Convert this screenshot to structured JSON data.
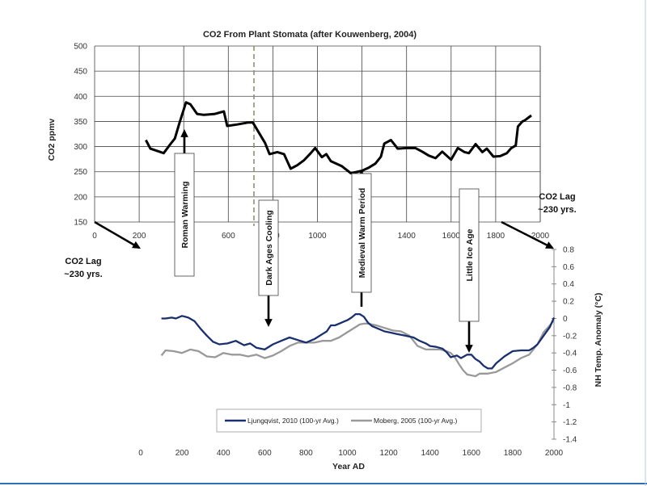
{
  "chart_data": [
    {
      "type": "line",
      "title": "CO2 From Plant Stomata (after Kouwenberg, 2004)",
      "xlabel": "",
      "ylabel": "CO2 ppmv",
      "xlim": [
        0,
        2000
      ],
      "ylim": [
        150,
        500
      ],
      "xticks": [
        "0",
        "200",
        "400",
        "600",
        "800",
        "1000",
        "1200",
        "1400",
        "1600",
        "1800",
        "2000"
      ],
      "yticks": [
        "150",
        "200",
        "250",
        "300",
        "350",
        "400",
        "450",
        "500"
      ],
      "grid": true,
      "series": [
        {
          "color": "#000000",
          "x": [
            230,
            250,
            310,
            340,
            360,
            380,
            410,
            430,
            460,
            490,
            540,
            580,
            595,
            640,
            690,
            710,
            765,
            785,
            820,
            850,
            880,
            910,
            940,
            970,
            990,
            1020,
            1040,
            1060,
            1080,
            1110,
            1150,
            1200,
            1230,
            1260,
            1285,
            1300,
            1330,
            1360,
            1400,
            1440,
            1470,
            1500,
            1530,
            1560,
            1580,
            1600,
            1630,
            1660,
            1680,
            1710,
            1740,
            1760,
            1790,
            1820,
            1850,
            1870,
            1890,
            1900,
            1920,
            1930,
            1960
          ],
          "y": [
            313,
            296,
            287,
            305,
            316,
            346,
            388,
            384,
            365,
            363,
            365,
            370,
            341,
            344,
            348,
            348,
            307,
            285,
            289,
            285,
            256,
            263,
            273,
            287,
            297,
            279,
            285,
            271,
            267,
            261,
            247,
            252,
            258,
            266,
            280,
            306,
            313,
            296,
            297,
            297,
            290,
            282,
            277,
            290,
            282,
            274,
            297,
            289,
            287,
            305,
            289,
            296,
            280,
            281,
            287,
            297,
            302,
            340,
            350,
            352,
            362
          ]
        }
      ],
      "annotations": [
        "CO2 Lag ~230 yrs."
      ]
    },
    {
      "type": "line",
      "title": "",
      "xlabel": "Year AD",
      "ylabel": "NH Temp. Anomaly (°C)",
      "xlim": [
        0,
        2000
      ],
      "ylim": [
        -1.4,
        0.8
      ],
      "xticks": [
        "0",
        "200",
        "400",
        "600",
        "800",
        "1000",
        "1200",
        "1400",
        "1600",
        "1800",
        "2000"
      ],
      "yticks": [
        "0.8",
        "0.6",
        "0.4",
        "0.2",
        "0",
        "-0.2",
        "-0.4",
        "-0.6",
        "-0.8",
        "-1",
        "-1.2",
        "-1.4"
      ],
      "grid": false,
      "legend_position": "bottom",
      "series": [
        {
          "name": "Ljungqvist, 2010 (100-yr Avg.)",
          "color": "#1a2f6e",
          "x": [
            100,
            120,
            150,
            170,
            200,
            230,
            260,
            290,
            320,
            350,
            380,
            420,
            460,
            500,
            530,
            560,
            600,
            640,
            680,
            720,
            760,
            800,
            840,
            880,
            900,
            920,
            940,
            960,
            980,
            1000,
            1020,
            1040,
            1060,
            1080,
            1100,
            1120,
            1140,
            1160,
            1180,
            1200,
            1240,
            1280,
            1320,
            1350,
            1380,
            1400,
            1430,
            1460,
            1480,
            1500,
            1530,
            1550,
            1580,
            1600,
            1620,
            1640,
            1660,
            1680,
            1700,
            1720,
            1760,
            1800,
            1840,
            1880,
            1900,
            1920,
            1950,
            1980,
            2000
          ],
          "y": [
            0.0,
            0.0,
            0.01,
            0.0,
            0.03,
            0.01,
            -0.03,
            -0.12,
            -0.2,
            -0.27,
            -0.3,
            -0.29,
            -0.26,
            -0.31,
            -0.29,
            -0.34,
            -0.36,
            -0.3,
            -0.26,
            -0.22,
            -0.25,
            -0.28,
            -0.24,
            -0.18,
            -0.15,
            -0.08,
            -0.08,
            -0.06,
            -0.04,
            -0.02,
            0.01,
            0.05,
            0.05,
            0.02,
            -0.05,
            -0.09,
            -0.11,
            -0.13,
            -0.15,
            -0.16,
            -0.18,
            -0.2,
            -0.22,
            -0.26,
            -0.29,
            -0.32,
            -0.33,
            -0.35,
            -0.39,
            -0.45,
            -0.43,
            -0.46,
            -0.42,
            -0.42,
            -0.47,
            -0.5,
            -0.55,
            -0.58,
            -0.58,
            -0.52,
            -0.44,
            -0.38,
            -0.37,
            -0.37,
            -0.34,
            -0.3,
            -0.2,
            -0.1,
            0.01
          ]
        },
        {
          "name": "Moberg, 2005 (100-yr Avg.)",
          "color": "#999999",
          "x": [
            100,
            120,
            160,
            200,
            240,
            280,
            320,
            360,
            400,
            440,
            480,
            520,
            560,
            600,
            640,
            680,
            720,
            760,
            800,
            840,
            880,
            920,
            960,
            1000,
            1040,
            1060,
            1080,
            1100,
            1140,
            1180,
            1220,
            1260,
            1300,
            1340,
            1380,
            1420,
            1450,
            1480,
            1500,
            1520,
            1540,
            1560,
            1580,
            1600,
            1620,
            1640,
            1680,
            1720,
            1760,
            1800,
            1840,
            1880,
            1920,
            1950,
            1980,
            2000
          ],
          "y": [
            -0.43,
            -0.37,
            -0.38,
            -0.4,
            -0.36,
            -0.38,
            -0.44,
            -0.45,
            -0.4,
            -0.42,
            -0.42,
            -0.44,
            -0.42,
            -0.46,
            -0.43,
            -0.38,
            -0.32,
            -0.28,
            -0.28,
            -0.28,
            -0.26,
            -0.26,
            -0.22,
            -0.16,
            -0.1,
            -0.07,
            -0.06,
            -0.06,
            -0.08,
            -0.11,
            -0.14,
            -0.15,
            -0.2,
            -0.32,
            -0.36,
            -0.36,
            -0.36,
            -0.38,
            -0.4,
            -0.45,
            -0.53,
            -0.6,
            -0.65,
            -0.66,
            -0.67,
            -0.64,
            -0.64,
            -0.62,
            -0.57,
            -0.52,
            -0.46,
            -0.42,
            -0.3,
            -0.16,
            -0.08,
            -0.02
          ]
        }
      ]
    }
  ],
  "annotations": {
    "top_right_line1": "CO2 Lag",
    "top_right_line2": "~230 yrs.",
    "left_line1": "CO2 Lag",
    "left_line2": "~230 yrs."
  },
  "events": [
    {
      "label": "Roman Warming",
      "year": 230,
      "direction": "up"
    },
    {
      "label": "Dark Ages Cooling",
      "year": 630,
      "direction": "down"
    },
    {
      "label": "Medieval Warm Period",
      "year": 1090,
      "direction": "up"
    },
    {
      "label": "Little Ice Age",
      "year": 1580,
      "direction": "down"
    }
  ],
  "colors": {
    "co2_line": "#000000",
    "ljungqvist": "#1a2f6e",
    "moberg": "#999999",
    "grid": "#444444",
    "dashed_marker": "#8a8a6a",
    "frame": "#2e6fb0"
  }
}
